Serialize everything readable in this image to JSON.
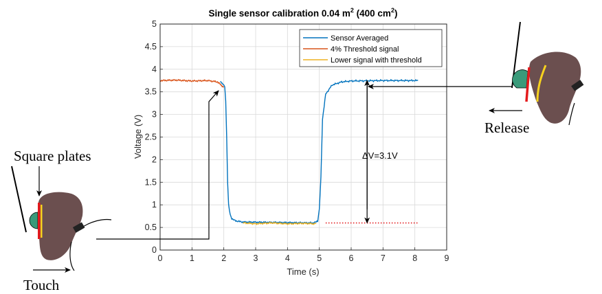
{
  "chart_data": {
    "type": "line",
    "title": "Single sensor calibration 0.04 m",
    "title_sup1": "2",
    "title_mid": " (400 cm",
    "title_sup2": "2",
    "title_end": ")",
    "xlabel": "Time (s)",
    "ylabel": "Voltage (V)",
    "xlim": [
      0,
      9
    ],
    "ylim": [
      0,
      5
    ],
    "xticks": [
      0,
      1,
      2,
      3,
      4,
      5,
      6,
      7,
      8,
      9
    ],
    "yticks": [
      0,
      0.5,
      1,
      1.5,
      2,
      2.5,
      3,
      3.5,
      4,
      4.5,
      5
    ],
    "grid": true,
    "legend_position": "top-right",
    "series": [
      {
        "name": "Sensor Averaged",
        "color": "#0072BD",
        "x": [
          1.9,
          2.0,
          2.03,
          2.06,
          2.09,
          2.12,
          2.15,
          2.2,
          2.25,
          2.35,
          2.5,
          2.6,
          4.8,
          4.9,
          4.95,
          5.0,
          5.05,
          5.1,
          5.2,
          5.4,
          5.7,
          6.0,
          7.0,
          8.1
        ],
        "y": [
          3.73,
          3.65,
          3.6,
          3.3,
          2.5,
          1.5,
          1.0,
          0.78,
          0.7,
          0.65,
          0.63,
          0.62,
          0.6,
          0.62,
          0.65,
          0.9,
          1.6,
          2.9,
          3.45,
          3.65,
          3.72,
          3.74,
          3.75,
          3.75
        ]
      },
      {
        "name": "4% Threshold signal",
        "color": "#D95319",
        "x": [
          0,
          0.5,
          1.0,
          1.5,
          1.8,
          2.0
        ],
        "y": [
          3.75,
          3.76,
          3.74,
          3.75,
          3.72,
          3.6
        ]
      },
      {
        "name": "Lower signal with threshold",
        "color": "#EDB120",
        "x": [
          2.6,
          3.0,
          3.5,
          4.0,
          4.5,
          4.9
        ],
        "y": [
          0.6,
          0.58,
          0.6,
          0.58,
          0.59,
          0.58
        ]
      },
      {
        "name": "",
        "color": "#E41A1C",
        "style": "dotted",
        "x": [
          5.2,
          8.1
        ],
        "y": [
          0.6,
          0.6
        ]
      }
    ],
    "annotations": {
      "delta_v": "ΔV=3.1V",
      "delta_v_x": 6.5,
      "delta_v_top": 3.75,
      "delta_v_bottom": 0.6
    }
  },
  "labels": {
    "square_plates": "Square plates",
    "touch": "Touch",
    "release": "Release"
  }
}
